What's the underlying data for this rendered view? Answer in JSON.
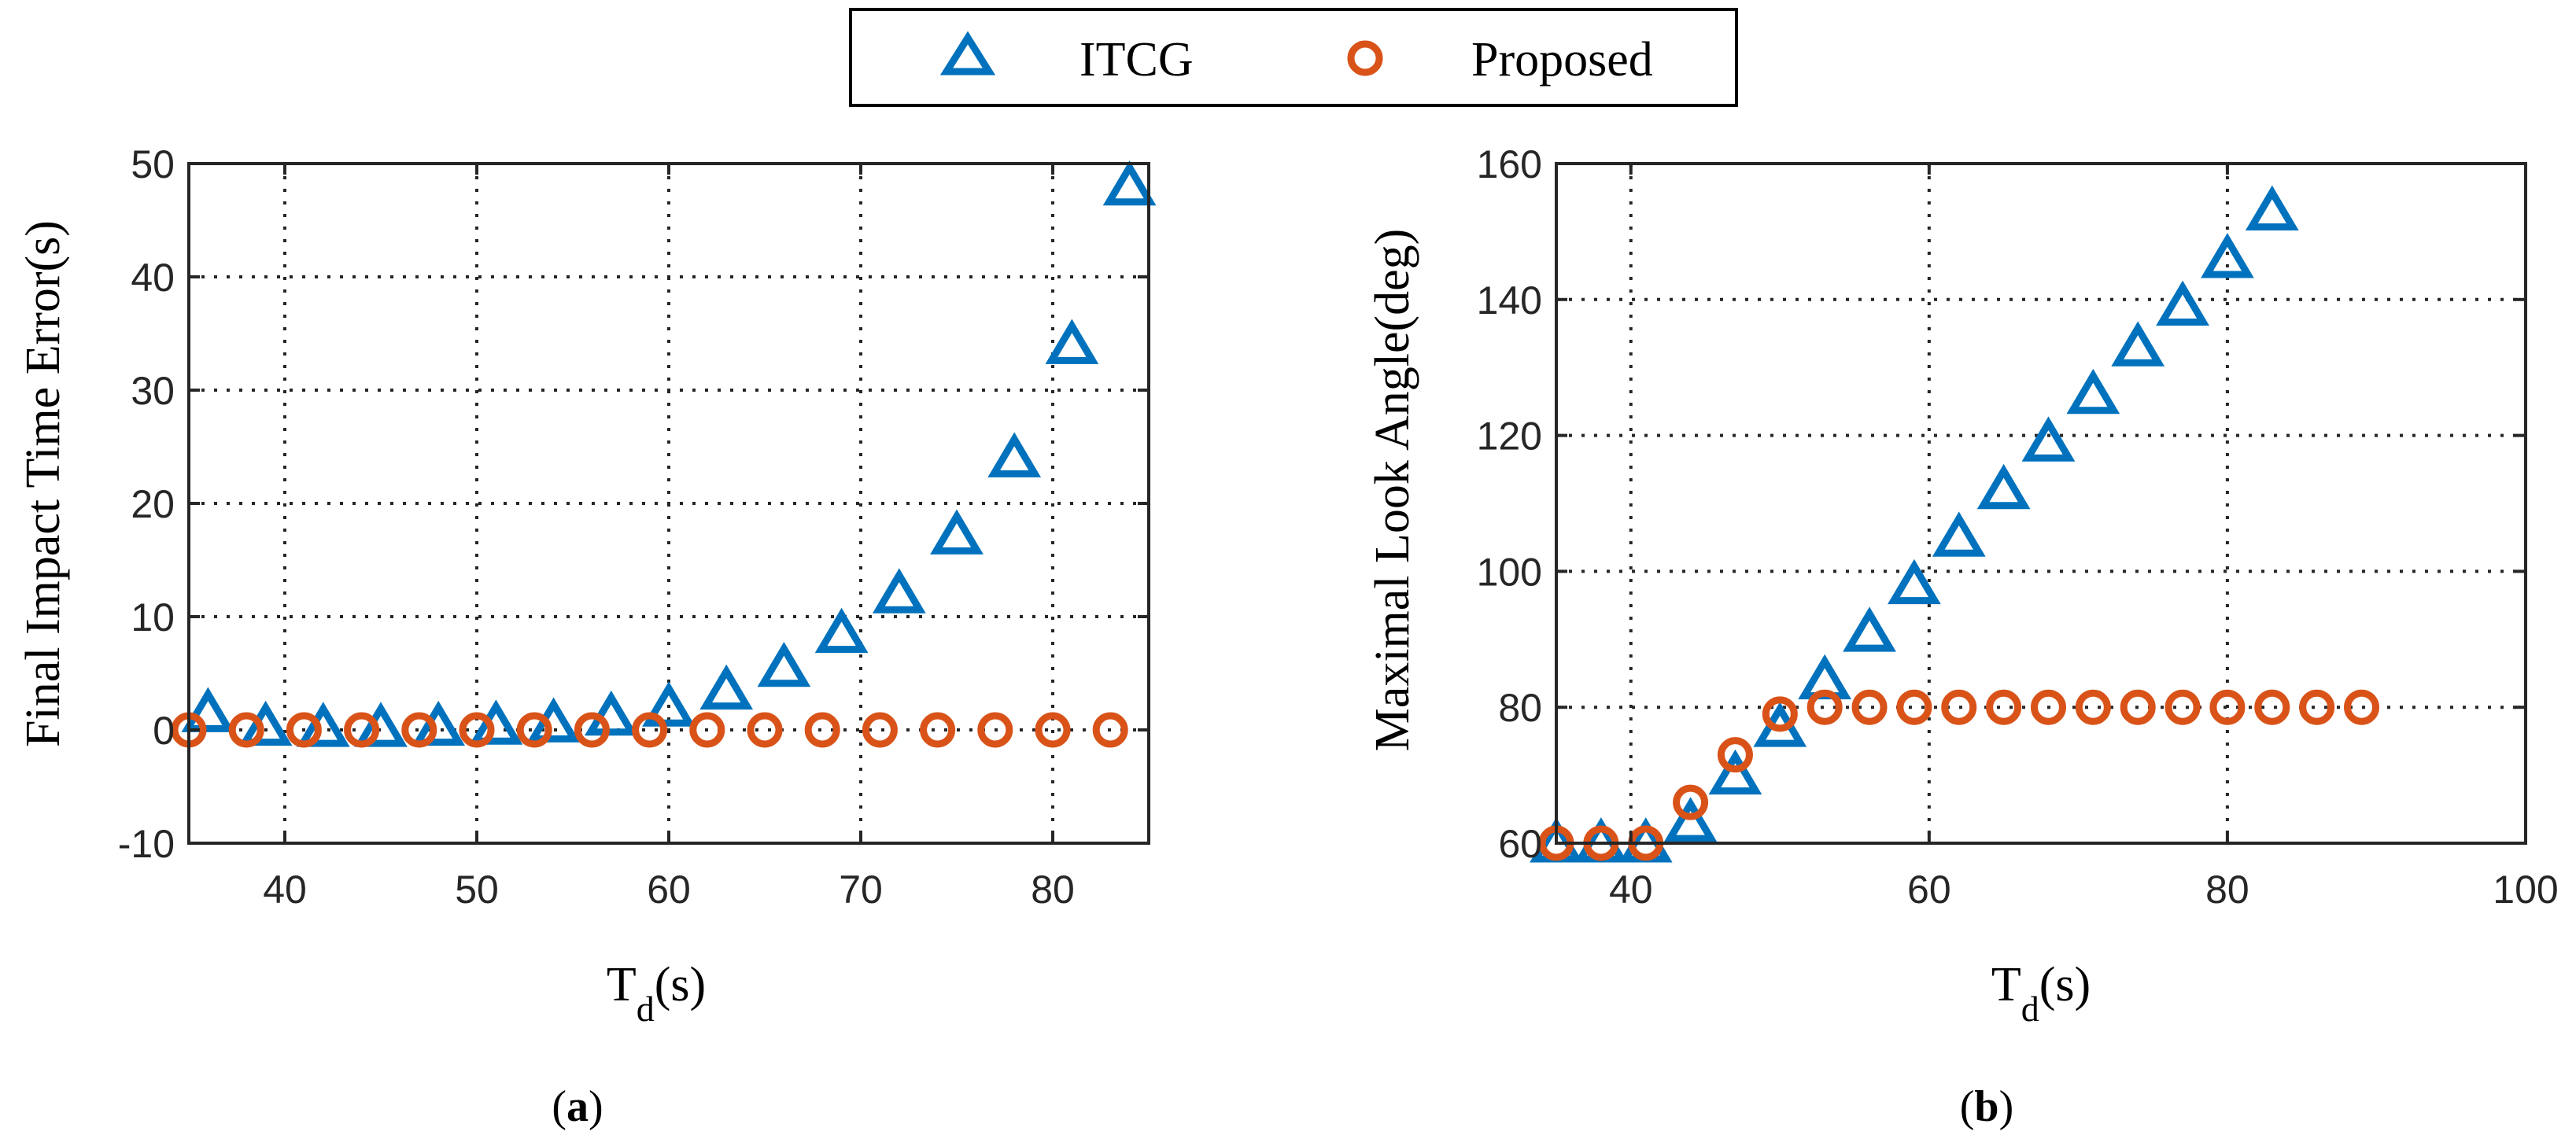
{
  "legend": {
    "series": [
      {
        "name": "ITCG",
        "marker": "triangle",
        "color": "#0072BD"
      },
      {
        "name": "Proposed",
        "marker": "circle",
        "color": "#D95319"
      }
    ]
  },
  "chart_data": [
    {
      "type": "scatter",
      "panel_label_open": "(",
      "panel_label": "a",
      "panel_label_close": ")",
      "title": "",
      "ylabel": "Final Impact Time Error(s)",
      "xlabel_main": "T",
      "xlabel_sub": "d",
      "xlabel_unit": "(s)",
      "xlim": [
        35,
        85
      ],
      "ylim": [
        -10,
        50
      ],
      "xticks": [
        40,
        50,
        60,
        70,
        80
      ],
      "yticks": [
        -10,
        0,
        10,
        20,
        30,
        40,
        50
      ],
      "grid": true,
      "series": [
        {
          "name": "ITCG",
          "x": [
            36,
            39,
            42,
            45,
            48,
            51,
            54,
            57,
            60,
            63,
            66,
            69,
            72,
            75,
            78,
            81,
            84
          ],
          "y": [
            1.5,
            0.3,
            0.2,
            0.2,
            0.3,
            0.4,
            0.6,
            1.2,
            2.0,
            3.5,
            5.5,
            8.5,
            12.0,
            17.2,
            24.0,
            34.0,
            48.0
          ]
        },
        {
          "name": "Proposed",
          "x": [
            35,
            38,
            41,
            44,
            47,
            50,
            53,
            56,
            59,
            62,
            65,
            68,
            71,
            74,
            77,
            80,
            83
          ],
          "y": [
            0,
            0,
            0,
            0,
            0,
            0,
            0,
            0,
            0,
            0,
            0,
            0,
            0,
            0,
            0,
            0,
            0
          ]
        }
      ]
    },
    {
      "type": "scatter",
      "panel_label_open": "(",
      "panel_label": "b",
      "panel_label_close": ")",
      "title": "",
      "ylabel": "Maximal Look Angle(deg)",
      "xlabel_main": "T",
      "xlabel_sub": "d",
      "xlabel_unit": "(s)",
      "xlim": [
        35,
        100
      ],
      "ylim": [
        60,
        160
      ],
      "xticks": [
        40,
        60,
        80,
        100
      ],
      "yticks": [
        60,
        80,
        100,
        120,
        140,
        160
      ],
      "grid": true,
      "series": [
        {
          "name": "ITCG",
          "x": [
            35,
            38,
            41,
            44,
            47,
            50,
            53,
            56,
            59,
            62,
            65,
            68,
            71,
            74,
            77,
            80,
            83
          ],
          "y": [
            60,
            60,
            60,
            63,
            70,
            77,
            84,
            91,
            98,
            105,
            112,
            119,
            126,
            133,
            139,
            146,
            153
          ]
        },
        {
          "name": "Proposed",
          "x": [
            35,
            38,
            41,
            44,
            47,
            50,
            53,
            56,
            59,
            62,
            65,
            68,
            71,
            74,
            77,
            80,
            83,
            86,
            89
          ],
          "y": [
            60,
            60,
            60,
            66,
            73,
            79,
            80,
            80,
            80,
            80,
            80,
            80,
            80,
            80,
            80,
            80,
            80,
            80,
            80
          ]
        }
      ]
    }
  ]
}
